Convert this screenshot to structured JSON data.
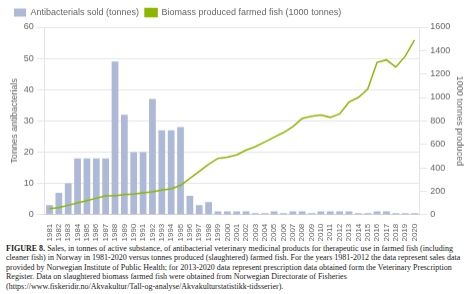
{
  "chart_data": {
    "type": "bar",
    "categories": [
      "1981",
      "1982",
      "1983",
      "1984",
      "1985",
      "1986",
      "1987",
      "1988",
      "1989",
      "1990",
      "1991",
      "1992",
      "1993",
      "1994",
      "1995",
      "1996",
      "1997",
      "1998",
      "1999",
      "2000",
      "2001",
      "2002",
      "2003",
      "2004",
      "2005",
      "2006",
      "2007",
      "2008",
      "2009",
      "2010",
      "2011",
      "2012",
      "2013",
      "2014",
      "2015",
      "2016",
      "2017",
      "2018",
      "2019",
      "2020"
    ],
    "series": [
      {
        "name": "Antibacterials sold (tonnes)",
        "type": "bar",
        "color": "#adb9d6",
        "values": [
          3.0,
          7.0,
          10.0,
          18.0,
          18.0,
          18.0,
          18.0,
          49.0,
          32.0,
          20.0,
          20.0,
          37.0,
          27.0,
          27.0,
          28.0,
          6.0,
          3.0,
          4.0,
          1.0,
          1.0,
          1.0,
          1.0,
          0.5,
          0.5,
          1.0,
          0.5,
          1.0,
          1.0,
          0.5,
          1.0,
          1.0,
          1.0,
          1.0,
          0.5,
          0.5,
          1.0,
          1.0,
          0.5,
          0.5,
          0.5
        ]
      },
      {
        "name": "Biomass produced farmed fish (1000 tonnes)",
        "type": "line",
        "color": "#8db600",
        "axis": "y2",
        "values": [
          50,
          60,
          80,
          100,
          120,
          140,
          160,
          160,
          170,
          175,
          185,
          195,
          210,
          220,
          250,
          310,
          370,
          430,
          480,
          490,
          510,
          550,
          580,
          620,
          660,
          700,
          750,
          820,
          840,
          850,
          830,
          860,
          960,
          1000,
          1070,
          1300,
          1320,
          1260,
          1350,
          1490
        ]
      }
    ],
    "ylabel": "Tonnes antibacterials",
    "y2label": "1000 tonnes produced",
    "ylim": [
      0,
      60
    ],
    "yticks": [
      0,
      10,
      20,
      30,
      40,
      50,
      60
    ],
    "y2lim": [
      0,
      1600
    ],
    "y2ticks": [
      0,
      200,
      400,
      600,
      800,
      1000,
      1200,
      1400,
      1600
    ],
    "grid": true,
    "legend": "upper left",
    "annotations": [
      "FIGURE 8.",
      "Sales, in tonnes of active substance, of antibacterial veterinary medicinal products for therapeutic use in farmed fish (including cleaner fish) in Norway in 1981-2020 versus tonnes produced (slaughtered) farmed fish. For the years 1981-2012 the data represent sales data provided by Norwegian Institute of Public Health; for 2013-2020 data represent prescription data obtained form the Veterinary Prescription Register. Data on slaughtered biomass farmed fish were obtained from Norwegian Directorate of Fisheries (https://www.fiskeridir.no/Akvakultur/Tall-og-analyse/Akvakulturstatistikk-tidsserier)."
    ]
  }
}
